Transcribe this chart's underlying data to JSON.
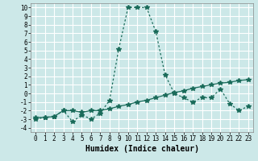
{
  "xlabel": "Humidex (Indice chaleur)",
  "ylabel": "",
  "xlim": [
    -0.5,
    23.5
  ],
  "ylim": [
    -4.5,
    10.5
  ],
  "xticks": [
    0,
    1,
    2,
    3,
    4,
    5,
    6,
    7,
    8,
    9,
    10,
    11,
    12,
    13,
    14,
    15,
    16,
    17,
    18,
    19,
    20,
    21,
    22,
    23
  ],
  "yticks": [
    -4,
    -3,
    -2,
    -1,
    0,
    1,
    2,
    3,
    4,
    5,
    6,
    7,
    8,
    9,
    10
  ],
  "bg_color": "#cce8e8",
  "grid_color": "#ffffff",
  "line_color": "#1a6b5a",
  "curve1_x": [
    0,
    1,
    2,
    3,
    4,
    5,
    6,
    7,
    8,
    9,
    10,
    11,
    12,
    13,
    14,
    15,
    16,
    17,
    18,
    19,
    20,
    21,
    22,
    23
  ],
  "curve1_y": [
    -3.0,
    -2.8,
    -2.7,
    -2.0,
    -3.3,
    -2.5,
    -3.0,
    -2.3,
    -0.8,
    5.2,
    10.0,
    10.0,
    10.0,
    7.2,
    2.2,
    0.0,
    -0.5,
    -1.0,
    -0.5,
    -0.5,
    0.5,
    -1.2,
    -2.0,
    -1.5
  ],
  "curve2_x": [
    0,
    1,
    2,
    3,
    4,
    5,
    6,
    7,
    8,
    9,
    10,
    11,
    12,
    13,
    14,
    15,
    16,
    17,
    18,
    19,
    20,
    21,
    22,
    23
  ],
  "curve2_y": [
    -2.8,
    -2.8,
    -2.7,
    -2.0,
    -2.0,
    -2.2,
    -2.0,
    -2.0,
    -1.8,
    -1.5,
    -1.3,
    -1.0,
    -0.8,
    -0.5,
    -0.2,
    0.1,
    0.3,
    0.6,
    0.8,
    1.0,
    1.2,
    1.3,
    1.5,
    1.6
  ],
  "marker": "*",
  "marker_size": 4,
  "line_width": 0.9,
  "tick_fontsize": 5.5,
  "xlabel_fontsize": 7
}
